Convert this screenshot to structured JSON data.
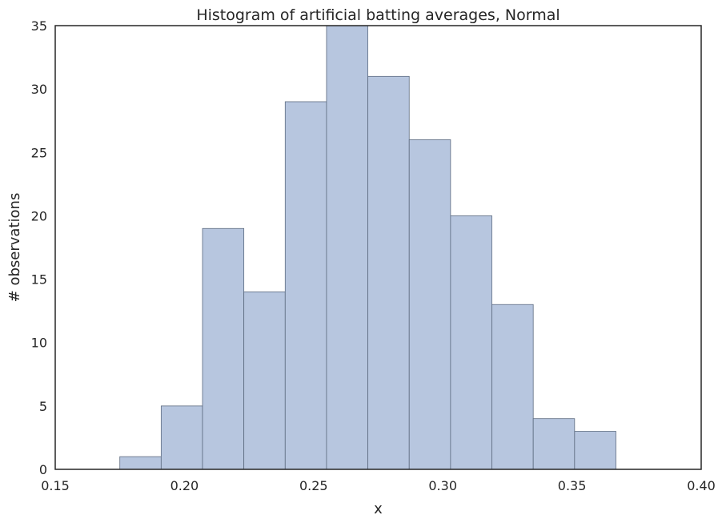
{
  "chart_data": {
    "type": "bar",
    "title": "Histogram of artificial batting averages, Normal",
    "xlabel": "x",
    "ylabel": "# observations",
    "xlim": [
      0.15,
      0.4
    ],
    "ylim": [
      0,
      35
    ],
    "xticks": [
      "0.15",
      "0.20",
      "0.25",
      "0.30",
      "0.35",
      "0.40"
    ],
    "yticks": [
      "0",
      "5",
      "10",
      "15",
      "20",
      "25",
      "30",
      "35"
    ],
    "grid": false,
    "bar_color": "#b7c6df",
    "edge_color": "#5d6b80",
    "bins": [
      {
        "x0": 0.175,
        "x1": 0.191,
        "count": 1
      },
      {
        "x0": 0.191,
        "x1": 0.207,
        "count": 5
      },
      {
        "x0": 0.207,
        "x1": 0.223,
        "count": 19
      },
      {
        "x0": 0.223,
        "x1": 0.239,
        "count": 14
      },
      {
        "x0": 0.239,
        "x1": 0.255,
        "count": 29
      },
      {
        "x0": 0.255,
        "x1": 0.271,
        "count": 35
      },
      {
        "x0": 0.271,
        "x1": 0.287,
        "count": 31
      },
      {
        "x0": 0.287,
        "x1": 0.303,
        "count": 26
      },
      {
        "x0": 0.303,
        "x1": 0.319,
        "count": 20
      },
      {
        "x0": 0.319,
        "x1": 0.335,
        "count": 13
      },
      {
        "x0": 0.335,
        "x1": 0.351,
        "count": 4
      },
      {
        "x0": 0.351,
        "x1": 0.367,
        "count": 3
      }
    ]
  }
}
